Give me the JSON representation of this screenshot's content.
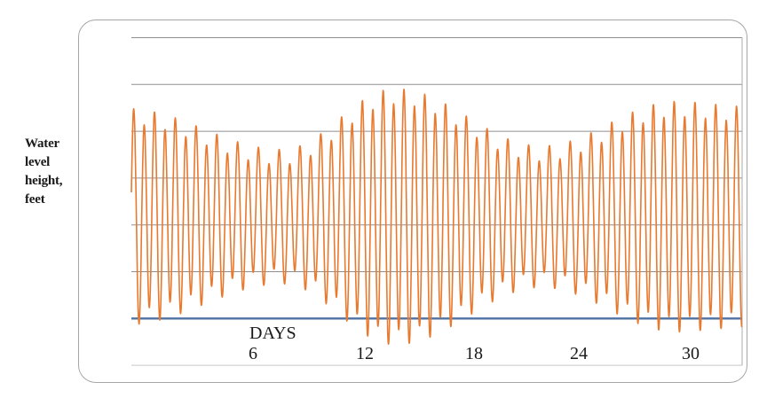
{
  "chart_data": {
    "type": "line",
    "title": "",
    "xlabel": "DAYS",
    "ylabel": "Water level height, feet",
    "ylabel_lines": [
      "Water",
      "level",
      "height,",
      "feet"
    ],
    "x_tick_labels": [
      "6",
      "12",
      "18",
      "24",
      "30"
    ],
    "x_ticks_days": [
      6,
      12,
      18,
      24,
      30
    ],
    "x_range_days": [
      -0.68,
      32.8
    ],
    "y_axis": {
      "unit": "feet",
      "tick_labels_shown": false,
      "gridline_step_feet": 2,
      "ylim": [
        -2,
        12
      ],
      "gridlines_feet": [
        12,
        10,
        8,
        6,
        4,
        2
      ],
      "axis_line_feet": 0,
      "lower_gridline_feet": -2
    },
    "grid": "horizontal-only",
    "legend": "none",
    "series": [
      {
        "name": "water-level-height",
        "color": "#e8792f",
        "description": "Semidiurnal tide oscillation with spring-neap amplitude modulation and alternating high/low inequality",
        "model": {
          "mean_level_feet": 4.35,
          "carrier_period_days": 0.57,
          "first_high_tide_day": -0.55,
          "diurnal_inequality_feet": 0.45,
          "envelope_points_day_amp": [
            [
              -1.0,
              4.3
            ],
            [
              7.6,
              2.55
            ],
            [
              13.8,
              5.15
            ],
            [
              21.8,
              2.7
            ],
            [
              29.2,
              4.6
            ],
            [
              33.0,
              4.4
            ]
          ]
        },
        "key_features": {
          "spring_high_feet": 9.9,
          "spring_low_feet": -1.4,
          "neap_high_feet": 7.3,
          "neap_low_feet": 1.4,
          "neap_days": [
            7.6,
            21.8
          ],
          "spring_days": [
            13.8,
            29.2
          ],
          "high_tides_per_day": 1.75
        }
      }
    ],
    "colors": {
      "curve": "#e8792f",
      "axis_line": "#4d72a3",
      "gridline": "#8f8f8f",
      "lower_gridline": "#c6c6c6",
      "right_border_line": "#ababab",
      "chart_border": "#a6a6a6",
      "background": "#ffffff",
      "text": "#1a1a1a"
    }
  }
}
